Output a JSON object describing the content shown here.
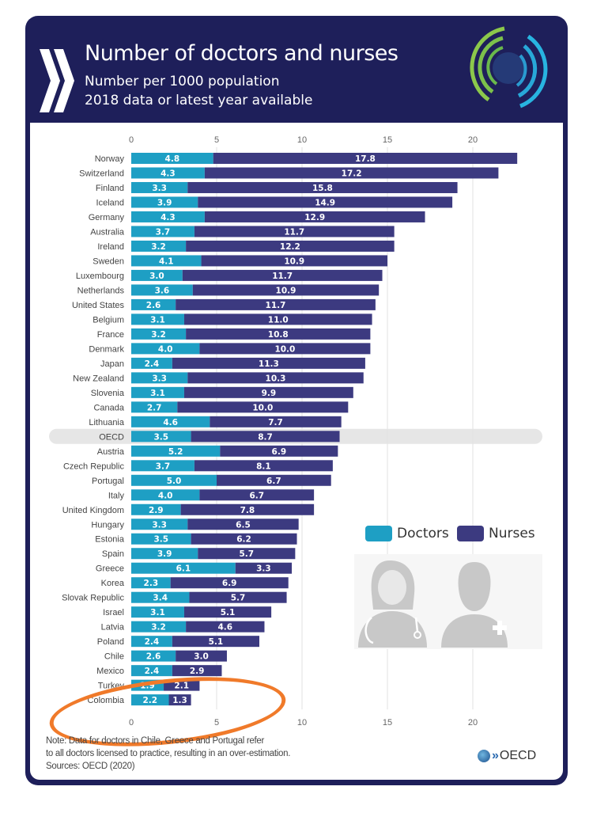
{
  "header": {
    "title": "Number of doctors and nurses",
    "subtitle1": "Number per 1000 population",
    "subtitle2": "2018 data or latest year available"
  },
  "legend": {
    "doctors": "Doctors",
    "nurses": "Nurses"
  },
  "footer": {
    "note1": "Note: Data for doctors in Chile, Greece and Portugal refer",
    "note2": "to all doctors licensed to practice, resulting in an over-estimation.",
    "source": "Sources: OECD (2020)",
    "logo": "OECD"
  },
  "colors": {
    "doctors": "#1e9fc4",
    "nurses": "#3c3a80",
    "header": "#1e1f5a",
    "highlight": "#e6e6e6",
    "annotation": "#f07a2a"
  },
  "chart_data": {
    "type": "bar",
    "orientation": "horizontal",
    "stacked": true,
    "title": "Number of doctors and nurses",
    "subtitle": "Number per 1000 population, 2018 data or latest year available",
    "xlim": [
      0,
      22.5
    ],
    "xticks": [
      0,
      5,
      10,
      15,
      20
    ],
    "grid": true,
    "legend_position": "right",
    "highlighted_category": "OECD",
    "annotated_category": "Colombia",
    "categories": [
      "Norway",
      "Switzerland",
      "Finland",
      "Iceland",
      "Germany",
      "Australia",
      "Ireland",
      "Sweden",
      "Luxembourg",
      "Netherlands",
      "United States",
      "Belgium",
      "France",
      "Denmark",
      "Japan",
      "New Zealand",
      "Slovenia",
      "Canada",
      "Lithuania",
      "OECD",
      "Austria",
      "Czech Republic",
      "Portugal",
      "Italy",
      "United Kingdom",
      "Hungary",
      "Estonia",
      "Spain",
      "Greece",
      "Korea",
      "Slovak Republic",
      "Israel",
      "Latvia",
      "Poland",
      "Chile",
      "Mexico",
      "Turkey",
      "Colombia"
    ],
    "series": [
      {
        "name": "Doctors",
        "values": [
          4.8,
          4.3,
          3.3,
          3.9,
          4.3,
          3.7,
          3.2,
          4.1,
          3.0,
          3.6,
          2.6,
          3.1,
          3.2,
          4.0,
          2.4,
          3.3,
          3.1,
          2.7,
          4.6,
          3.5,
          5.2,
          3.7,
          5.0,
          4.0,
          2.9,
          3.3,
          3.5,
          3.9,
          6.1,
          2.3,
          3.4,
          3.1,
          3.2,
          2.4,
          2.6,
          2.4,
          1.9,
          2.2
        ]
      },
      {
        "name": "Nurses",
        "values": [
          17.8,
          17.2,
          15.8,
          14.9,
          12.9,
          11.7,
          12.2,
          10.9,
          11.7,
          10.9,
          11.7,
          11.0,
          10.8,
          10.0,
          11.3,
          10.3,
          9.9,
          10.0,
          7.7,
          8.7,
          6.9,
          8.1,
          6.7,
          6.7,
          7.8,
          6.5,
          6.2,
          5.7,
          3.3,
          6.9,
          5.7,
          5.1,
          4.6,
          5.1,
          3.0,
          2.9,
          2.1,
          1.3
        ]
      }
    ]
  }
}
